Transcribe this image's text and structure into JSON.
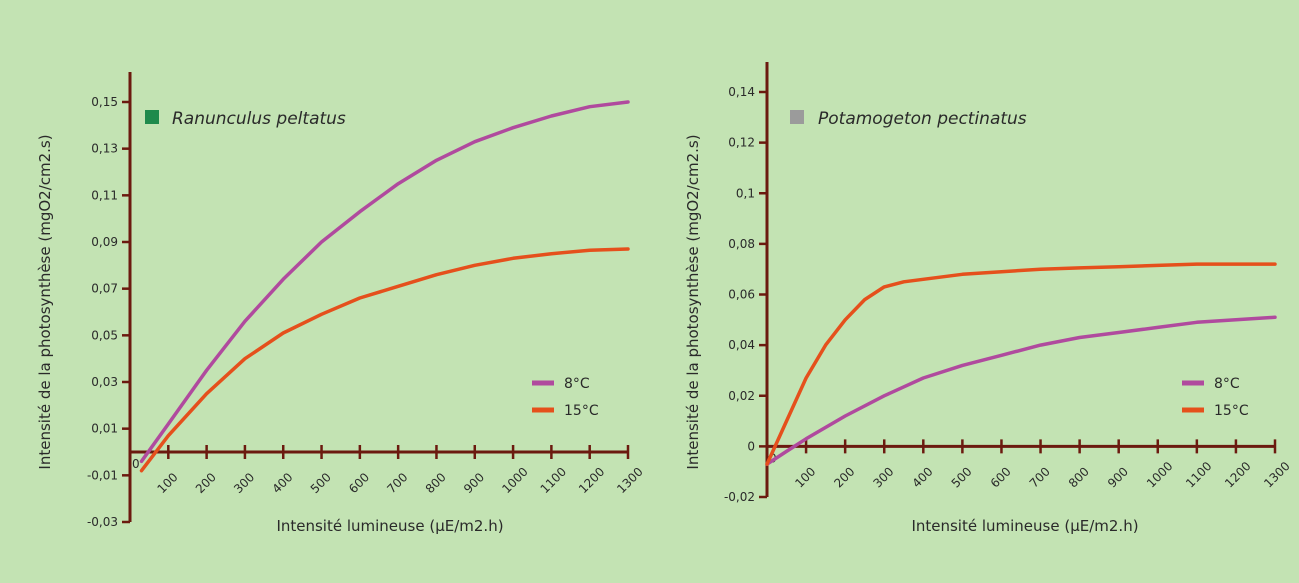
{
  "colors": {
    "background": "#c3e3b3",
    "axis": "#6b1a0f",
    "series_8": "#b04a9e",
    "series_15": "#e5501c",
    "marker_left": "#1f8a4c",
    "marker_right": "#9b9b9b"
  },
  "chart_data": [
    {
      "type": "line",
      "title": "Ranunculus peltatus",
      "title_marker_color": "#1f8a4c",
      "xlabel": "Intensité lumineuse (µE/m2.h)",
      "ylabel": "Intensité de la photosynthèse (mgO2/cm2.s)",
      "xlim": [
        0,
        1300
      ],
      "ylim": [
        -0.03,
        0.15
      ],
      "x_ticks": [
        100,
        200,
        300,
        400,
        500,
        600,
        700,
        800,
        900,
        1000,
        1100,
        1200,
        1300
      ],
      "x_origin_label": "0",
      "y_ticks": [
        -0.03,
        -0.01,
        0.01,
        0.03,
        0.05,
        0.07,
        0.09,
        0.11,
        0.13,
        0.15
      ],
      "y_tick_labels": [
        "-0,03",
        "-0,01",
        "0,01",
        "0,03",
        "0,05",
        "0,07",
        "0,09",
        "0,11",
        "0,13",
        "0,15"
      ],
      "grid": false,
      "legend": "bottom-right",
      "series": [
        {
          "name": "8°C",
          "color": "#b04a9e",
          "x": [
            30,
            100,
            200,
            300,
            400,
            500,
            600,
            700,
            800,
            900,
            1000,
            1100,
            1200,
            1300
          ],
          "y": [
            -0.004,
            0.012,
            0.035,
            0.056,
            0.074,
            0.09,
            0.103,
            0.115,
            0.125,
            0.133,
            0.139,
            0.144,
            0.148,
            0.15
          ]
        },
        {
          "name": "15°C",
          "color": "#e5501c",
          "x": [
            30,
            100,
            200,
            300,
            400,
            500,
            600,
            700,
            800,
            900,
            1000,
            1100,
            1200,
            1300
          ],
          "y": [
            -0.008,
            0.007,
            0.025,
            0.04,
            0.051,
            0.059,
            0.066,
            0.071,
            0.076,
            0.08,
            0.083,
            0.085,
            0.0865,
            0.087
          ]
        }
      ]
    },
    {
      "type": "line",
      "title": "Potamogeton pectinatus",
      "title_marker_color": "#9b9b9b",
      "xlabel": "Intensité lumineuse (µE/m2.h)",
      "ylabel": "Intensité de la photosynthèse (mgO2/cm2.s)",
      "xlim": [
        0,
        1300
      ],
      "ylim": [
        -0.02,
        0.14
      ],
      "x_ticks": [
        100,
        200,
        300,
        400,
        500,
        600,
        700,
        800,
        900,
        1000,
        1100,
        1200,
        1300
      ],
      "x_origin_label": "0",
      "y_ticks": [
        -0.02,
        0,
        0.02,
        0.04,
        0.06,
        0.08,
        0.1,
        0.12,
        0.14
      ],
      "y_tick_labels": [
        "-0,02",
        "0",
        "0,02",
        "0,04",
        "0,06",
        "0,08",
        "0,1",
        "0,12",
        "0,14"
      ],
      "grid": false,
      "legend": "bottom-right",
      "series": [
        {
          "name": "8°C",
          "color": "#b04a9e",
          "x": [
            0,
            50,
            100,
            200,
            300,
            400,
            500,
            600,
            700,
            800,
            900,
            1000,
            1100,
            1200,
            1300
          ],
          "y": [
            -0.007,
            -0.002,
            0.003,
            0.012,
            0.02,
            0.027,
            0.032,
            0.036,
            0.04,
            0.043,
            0.045,
            0.047,
            0.049,
            0.05,
            0.051
          ]
        },
        {
          "name": "15°C",
          "color": "#e5501c",
          "x": [
            0,
            50,
            100,
            150,
            200,
            250,
            300,
            350,
            400,
            500,
            600,
            700,
            800,
            900,
            1000,
            1100,
            1200,
            1300
          ],
          "y": [
            -0.007,
            0.01,
            0.027,
            0.04,
            0.05,
            0.058,
            0.063,
            0.065,
            0.066,
            0.068,
            0.069,
            0.07,
            0.0705,
            0.071,
            0.0715,
            0.072,
            0.072,
            0.072
          ]
        }
      ]
    }
  ]
}
